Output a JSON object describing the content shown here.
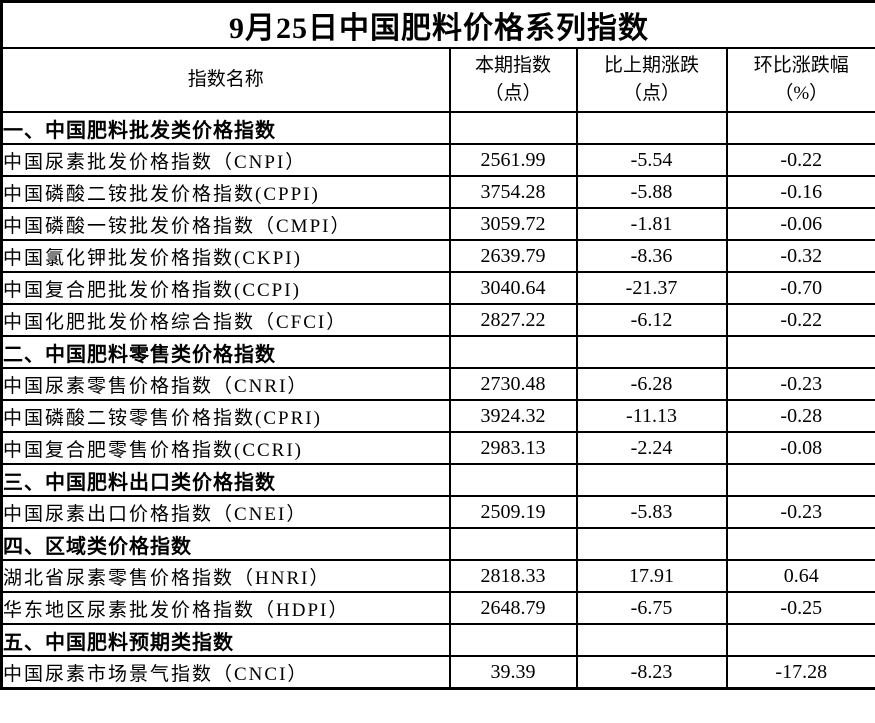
{
  "title": "9月25日中国肥料价格系列指数",
  "columns": {
    "name": "指数名称",
    "current": "本期指数\n（点）",
    "change": "比上期涨跌\n（点）",
    "percent": "环比涨跌幅\n（%）"
  },
  "rows": [
    {
      "type": "section",
      "label": "一、中国肥料批发类价格指数",
      "current": "",
      "change": "",
      "percent": ""
    },
    {
      "type": "data",
      "label": "中国尿素批发价格指数（CNPI）",
      "current": "2561.99",
      "change": "-5.54",
      "percent": "-0.22"
    },
    {
      "type": "data",
      "label": "中国磷酸二铵批发价格指数(CPPI)",
      "current": "3754.28",
      "change": "-5.88",
      "percent": "-0.16"
    },
    {
      "type": "data",
      "label": "中国磷酸一铵批发价格指数（CMPI）",
      "current": "3059.72",
      "change": "-1.81",
      "percent": "-0.06"
    },
    {
      "type": "data",
      "label": "中国氯化钾批发价格指数(CKPI)",
      "current": "2639.79",
      "change": "-8.36",
      "percent": "-0.32"
    },
    {
      "type": "data",
      "label": "中国复合肥批发价格指数(CCPI)",
      "current": "3040.64",
      "change": "-21.37",
      "percent": "-0.70"
    },
    {
      "type": "data",
      "label": "中国化肥批发价格综合指数（CFCI）",
      "current": "2827.22",
      "change": "-6.12",
      "percent": "-0.22"
    },
    {
      "type": "section",
      "label": "二、中国肥料零售类价格指数",
      "current": "",
      "change": "",
      "percent": ""
    },
    {
      "type": "data",
      "label": "中国尿素零售价格指数（CNRI）",
      "current": "2730.48",
      "change": "-6.28",
      "percent": "-0.23"
    },
    {
      "type": "data",
      "label": "中国磷酸二铵零售价格指数(CPRI)",
      "current": "3924.32",
      "change": "-11.13",
      "percent": "-0.28"
    },
    {
      "type": "data",
      "label": "中国复合肥零售价格指数(CCRI)",
      "current": "2983.13",
      "change": "-2.24",
      "percent": "-0.08"
    },
    {
      "type": "section",
      "label": "三、中国肥料出口类价格指数",
      "current": "",
      "change": "",
      "percent": ""
    },
    {
      "type": "data",
      "label": "中国尿素出口价格指数（CNEI）",
      "current": "2509.19",
      "change": "-5.83",
      "percent": "-0.23"
    },
    {
      "type": "section",
      "label": "四、区域类价格指数",
      "current": "",
      "change": "",
      "percent": ""
    },
    {
      "type": "data",
      "label": "湖北省尿素零售价格指数（HNRI）",
      "current": "2818.33",
      "change": "17.91",
      "percent": "0.64"
    },
    {
      "type": "data",
      "label": "华东地区尿素批发价格指数（HDPI）",
      "current": "2648.79",
      "change": "-6.75",
      "percent": "-0.25"
    },
    {
      "type": "section",
      "label": "五、中国肥料预期类指数",
      "current": "",
      "change": "",
      "percent": ""
    },
    {
      "type": "data",
      "label": "中国尿素市场景气指数（CNCI）",
      "current": "39.39",
      "change": "-8.23",
      "percent": "-17.28"
    }
  ]
}
